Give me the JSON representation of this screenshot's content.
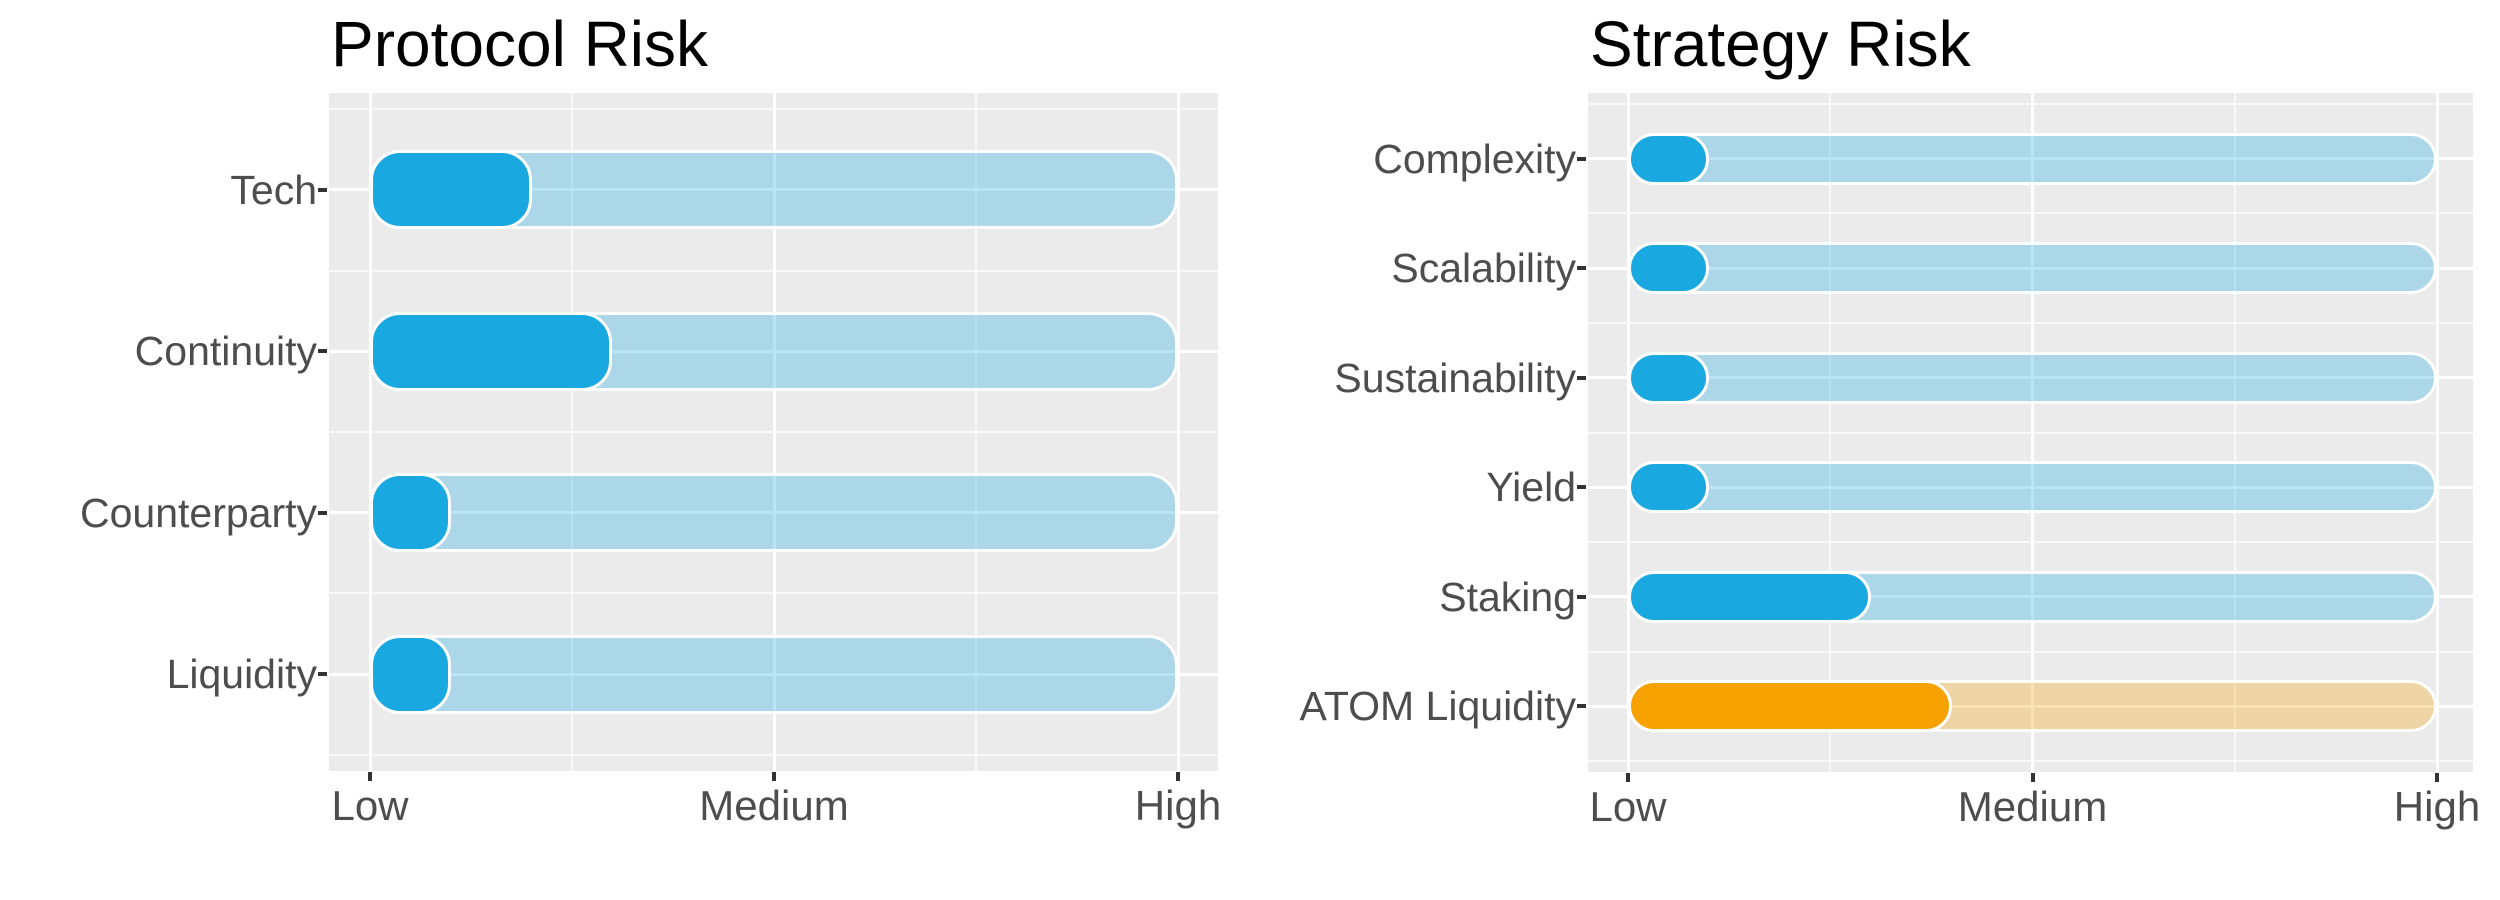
{
  "page": {
    "background": "#FFFFFF"
  },
  "palette": {
    "panel_bg": "#EBEBEB",
    "grid_major": "#FFFFFF",
    "blue_fill": "#1AA8E0",
    "orange_fill": "#F8A202",
    "track_alpha": 0.3,
    "tick_mark": "#333333",
    "label_text": "#4D4D4D",
    "title_text": "#000000"
  },
  "chart_data": [
    {
      "type": "bar",
      "title": "Protocol Risk",
      "orientation": "horizontal",
      "x_ticks": [
        "Low",
        "Medium",
        "High"
      ],
      "x_range": [
        1,
        3
      ],
      "track_value": 3,
      "grid": "on",
      "legend": "none",
      "categories": [
        "Tech",
        "Continuity",
        "Counterparty",
        "Liquidity"
      ],
      "values": [
        1.4,
        1.6,
        1.2,
        1.2
      ],
      "bar_colors": [
        "#1AA8E0",
        "#1AA8E0",
        "#1AA8E0",
        "#1AA8E0"
      ]
    },
    {
      "type": "bar",
      "title": "Strategy Risk",
      "orientation": "horizontal",
      "x_ticks": [
        "Low",
        "Medium",
        "High"
      ],
      "x_range": [
        1,
        3
      ],
      "track_value": 3,
      "grid": "on",
      "legend": "none",
      "categories": [
        "Complexity",
        "Scalability",
        "Sustainability",
        "Yield",
        "Staking",
        "ATOM Liquidity"
      ],
      "values": [
        1.2,
        1.2,
        1.2,
        1.2,
        1.6,
        1.8
      ],
      "bar_colors": [
        "#1AA8E0",
        "#1AA8E0",
        "#1AA8E0",
        "#1AA8E0",
        "#1AA8E0",
        "#F8A202"
      ]
    }
  ]
}
